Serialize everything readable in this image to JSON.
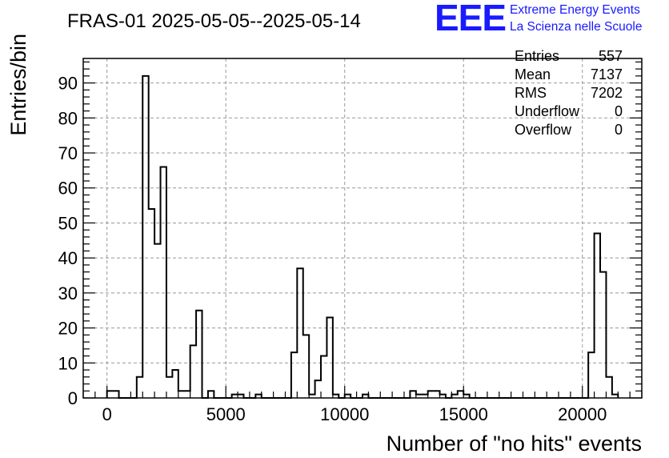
{
  "chart_data": {
    "type": "histogram",
    "title": "FRAS-01 2025-05-05--2025-05-14",
    "xlabel": "Number of \"no hits\" events",
    "ylabel": "Entries/bin",
    "xlim": [
      -1000,
      22500
    ],
    "ylim": [
      0,
      97
    ],
    "bin_width": 250,
    "x_ticks": [
      0,
      5000,
      10000,
      15000,
      20000
    ],
    "y_ticks": [
      0,
      10,
      20,
      30,
      40,
      50,
      60,
      70,
      80,
      90
    ],
    "grid": true,
    "bins": [
      {
        "x": 0,
        "y": 2
      },
      {
        "x": 250,
        "y": 2
      },
      {
        "x": 1000,
        "y": 0
      },
      {
        "x": 1250,
        "y": 6
      },
      {
        "x": 1500,
        "y": 92
      },
      {
        "x": 1750,
        "y": 54
      },
      {
        "x": 2000,
        "y": 44
      },
      {
        "x": 2250,
        "y": 66
      },
      {
        "x": 2500,
        "y": 6
      },
      {
        "x": 2750,
        "y": 8
      },
      {
        "x": 3000,
        "y": 2
      },
      {
        "x": 3250,
        "y": 2
      },
      {
        "x": 3500,
        "y": 15
      },
      {
        "x": 3750,
        "y": 25
      },
      {
        "x": 4000,
        "y": 0
      },
      {
        "x": 4250,
        "y": 2
      },
      {
        "x": 5250,
        "y": 1
      },
      {
        "x": 5500,
        "y": 1
      },
      {
        "x": 6250,
        "y": 1
      },
      {
        "x": 7750,
        "y": 13
      },
      {
        "x": 8000,
        "y": 37
      },
      {
        "x": 8250,
        "y": 18
      },
      {
        "x": 8500,
        "y": 1
      },
      {
        "x": 8750,
        "y": 5
      },
      {
        "x": 9000,
        "y": 12
      },
      {
        "x": 9250,
        "y": 23
      },
      {
        "x": 9500,
        "y": 1
      },
      {
        "x": 10000,
        "y": 1
      },
      {
        "x": 10750,
        "y": 1
      },
      {
        "x": 12750,
        "y": 2
      },
      {
        "x": 13000,
        "y": 1
      },
      {
        "x": 13250,
        "y": 1
      },
      {
        "x": 13500,
        "y": 2
      },
      {
        "x": 13750,
        "y": 2
      },
      {
        "x": 14000,
        "y": 1
      },
      {
        "x": 14500,
        "y": 1
      },
      {
        "x": 14750,
        "y": 2
      },
      {
        "x": 15000,
        "y": 1
      },
      {
        "x": 20250,
        "y": 13
      },
      {
        "x": 20500,
        "y": 47
      },
      {
        "x": 20750,
        "y": 36
      },
      {
        "x": 21000,
        "y": 6
      },
      {
        "x": 21250,
        "y": 1
      }
    ],
    "stats": {
      "entries_label": "Entries",
      "entries": "557",
      "mean_label": "Mean",
      "mean": "7137",
      "rms_label": "RMS",
      "rms": "7202",
      "underflow_label": "Underflow",
      "underflow": "0",
      "overflow_label": "Overflow",
      "overflow": "0"
    }
  },
  "logo": {
    "mark": "EEE",
    "line1": "Extreme Energy Events",
    "line2": "La Scienza nelle Scuole",
    "color": "#1a1aff"
  }
}
